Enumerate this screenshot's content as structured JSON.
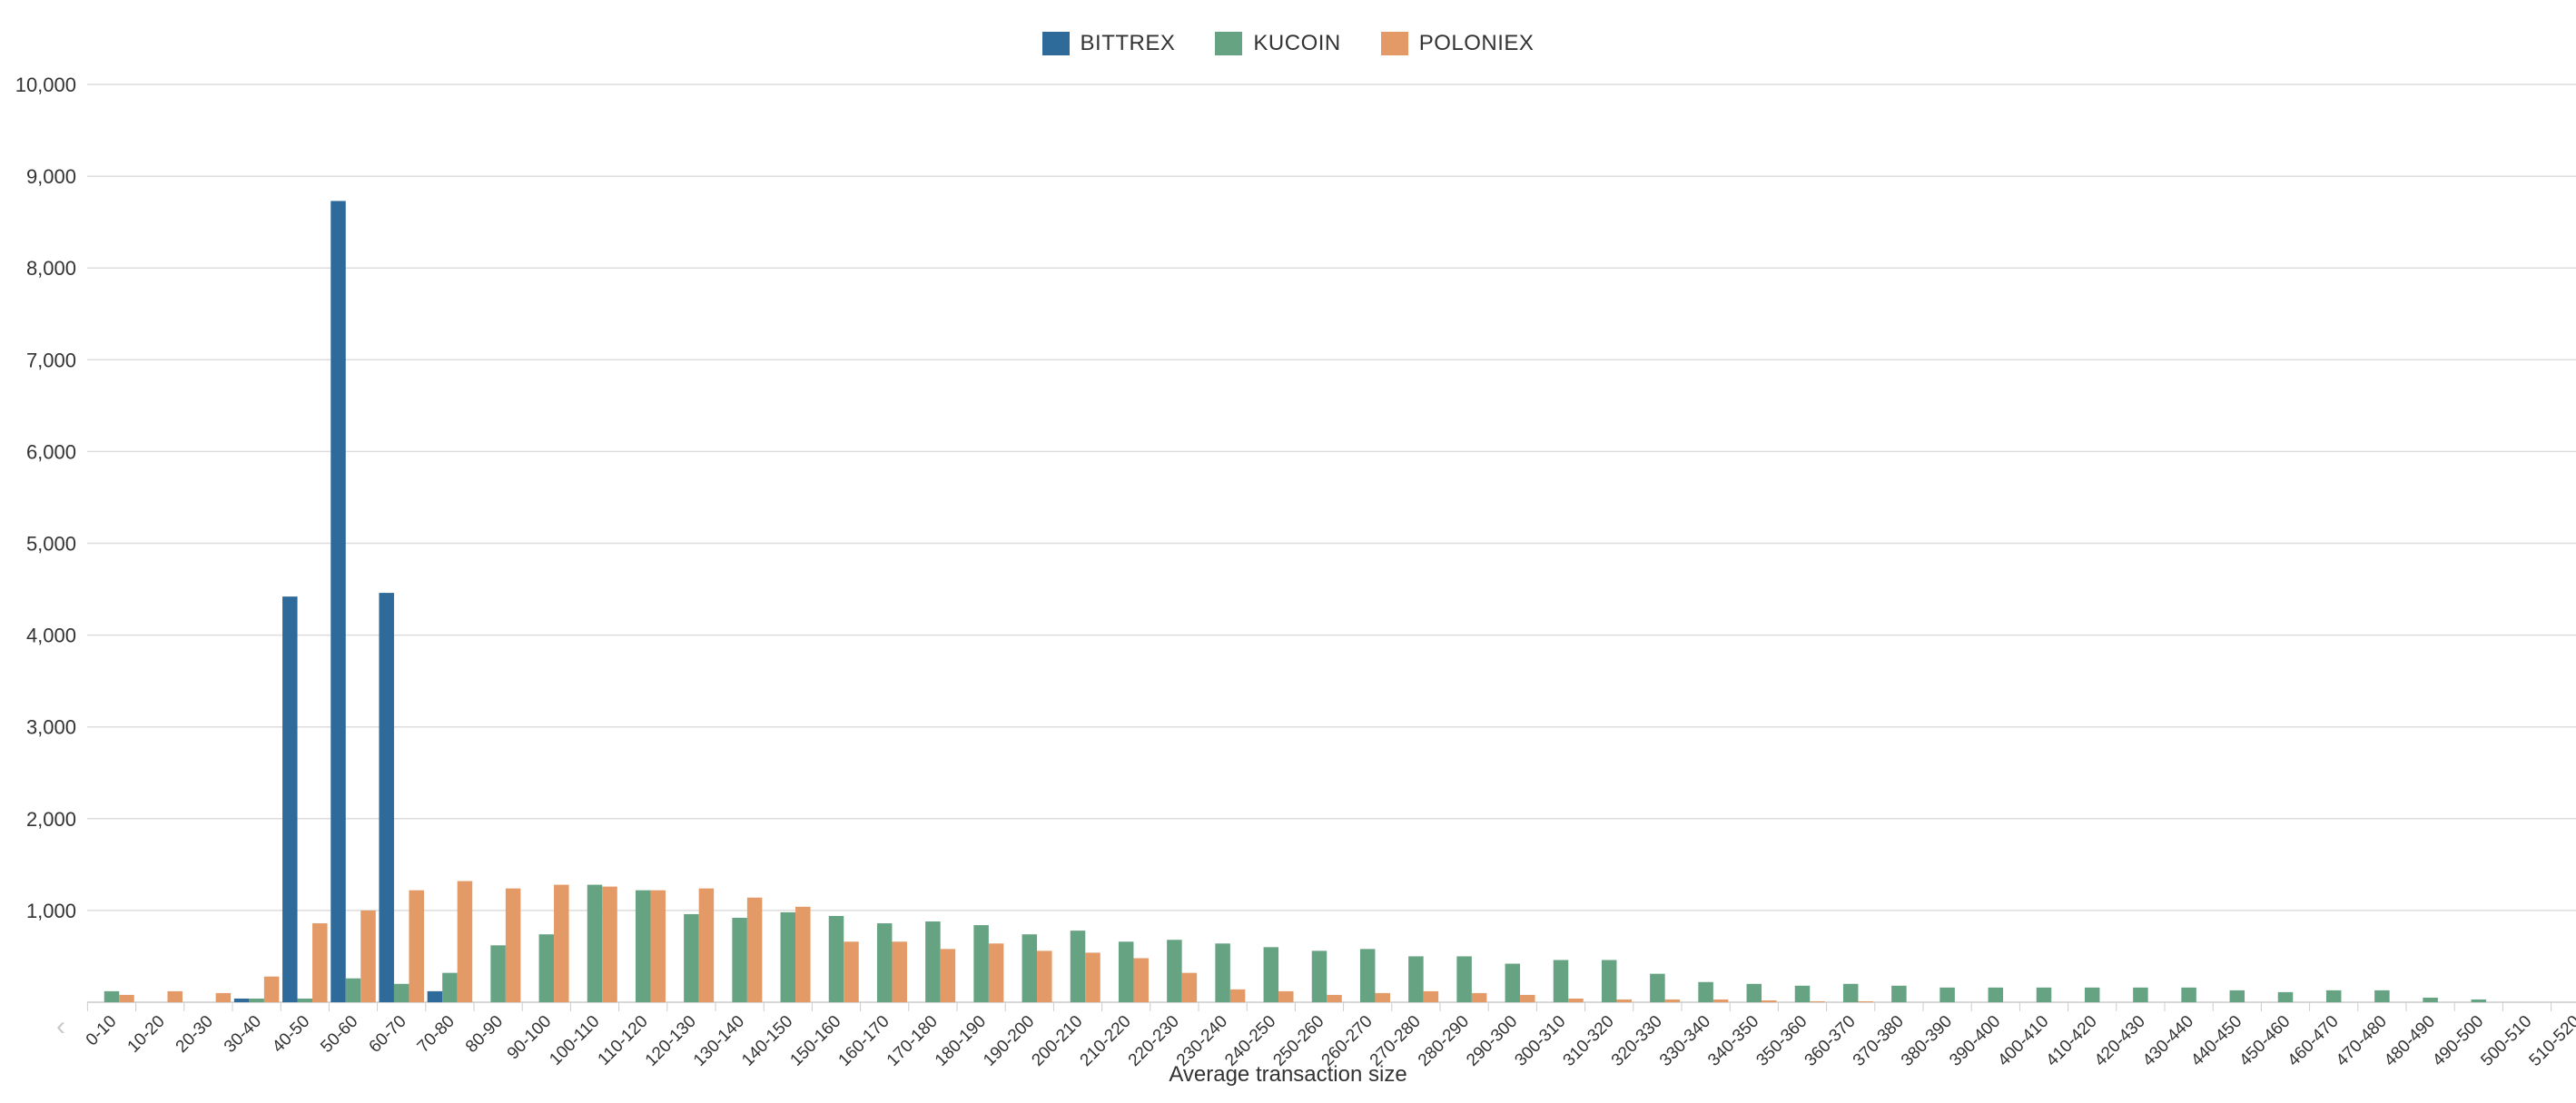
{
  "chart_data": {
    "type": "bar",
    "xlabel": "Average transaction size",
    "ylabel": "",
    "ylim": [
      0,
      10000
    ],
    "yticks": [
      "1,000",
      "2,000",
      "3,000",
      "4,000",
      "5,000",
      "6,000",
      "7,000",
      "8,000",
      "9,000",
      "10,000"
    ],
    "grid": true,
    "legend_position": "top-center",
    "categories": [
      "0-10",
      "10-20",
      "20-30",
      "30-40",
      "40-50",
      "50-60",
      "60-70",
      "70-80",
      "80-90",
      "90-100",
      "100-110",
      "110-120",
      "120-130",
      "130-140",
      "140-150",
      "150-160",
      "160-170",
      "170-180",
      "180-190",
      "190-200",
      "200-210",
      "210-220",
      "220-230",
      "230-240",
      "240-250",
      "250-260",
      "260-270",
      "270-280",
      "280-290",
      "290-300",
      "300-310",
      "310-320",
      "320-330",
      "330-340",
      "340-350",
      "350-360",
      "360-370",
      "370-380",
      "380-390",
      "390-400",
      "400-410",
      "410-420",
      "420-430",
      "430-440",
      "440-450",
      "450-460",
      "460-470",
      "470-480",
      "480-490",
      "490-500",
      "500-510",
      "510-520"
    ],
    "series": [
      {
        "name": "BITTREX",
        "color": "#2e6a9a",
        "values": [
          0,
          0,
          0,
          40,
          4420,
          8730,
          4460,
          120,
          0,
          0,
          0,
          0,
          0,
          0,
          0,
          0,
          0,
          0,
          0,
          0,
          0,
          0,
          0,
          0,
          0,
          0,
          0,
          0,
          0,
          0,
          0,
          0,
          0,
          0,
          0,
          0,
          0,
          0,
          0,
          0,
          0,
          0,
          0,
          0,
          0,
          0,
          0,
          0,
          0,
          0,
          0,
          0
        ]
      },
      {
        "name": "KUCOIN",
        "color": "#66a383",
        "values": [
          120,
          0,
          0,
          40,
          40,
          260,
          200,
          320,
          620,
          740,
          1280,
          1220,
          960,
          920,
          980,
          940,
          860,
          880,
          840,
          740,
          780,
          660,
          680,
          640,
          600,
          560,
          580,
          500,
          500,
          420,
          460,
          460,
          310,
          220,
          200,
          180,
          200,
          180,
          160,
          160,
          160,
          160,
          160,
          160,
          130,
          110,
          130,
          130,
          50,
          30,
          0,
          0
        ]
      },
      {
        "name": "POLONIEX",
        "color": "#e39a66",
        "values": [
          80,
          120,
          100,
          280,
          860,
          1000,
          1220,
          1320,
          1240,
          1280,
          1260,
          1220,
          1240,
          1140,
          1040,
          660,
          660,
          580,
          640,
          560,
          540,
          480,
          320,
          140,
          120,
          80,
          100,
          120,
          100,
          80,
          40,
          30,
          30,
          30,
          20,
          10,
          10,
          0,
          0,
          0,
          0,
          0,
          0,
          0,
          0,
          0,
          0,
          0,
          0,
          0,
          0,
          0
        ]
      }
    ]
  }
}
